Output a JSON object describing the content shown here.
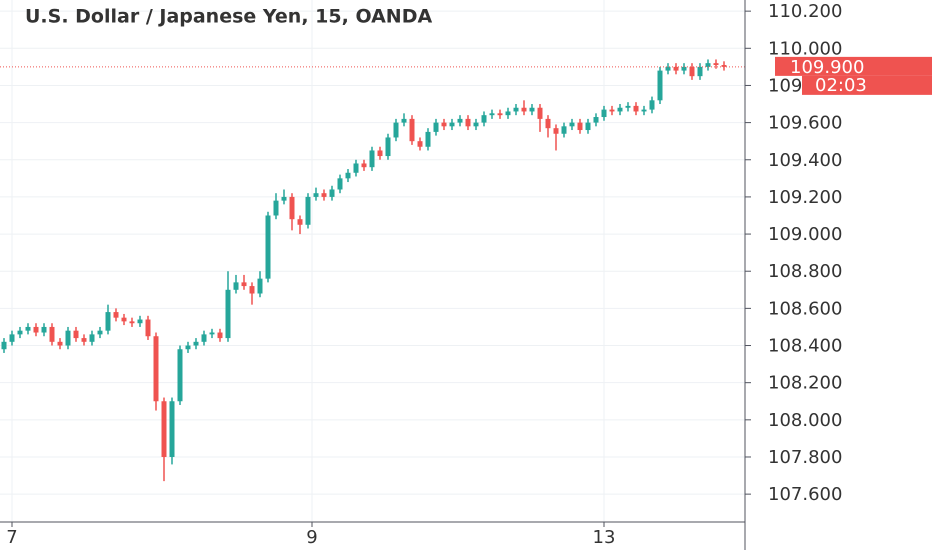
{
  "chart_data": {
    "type": "candlestick",
    "title": "U.S. Dollar / Japanese Yen, 15, OANDA",
    "open": [
      108.38,
      108.42,
      108.46,
      108.48,
      108.5,
      108.47,
      108.5,
      108.42,
      108.4,
      108.48,
      108.44,
      108.42,
      108.46,
      108.48,
      108.58,
      108.55,
      108.53,
      108.52,
      108.54,
      108.45,
      108.1,
      107.8,
      108.1,
      108.38,
      108.4,
      108.42,
      108.46,
      108.47,
      108.44,
      108.7,
      108.74,
      108.72,
      108.68,
      108.76,
      109.1,
      109.18,
      109.2,
      109.08,
      109.05,
      109.2,
      109.22,
      109.2,
      109.24,
      109.3,
      109.33,
      109.38,
      109.36,
      109.45,
      109.42,
      109.52,
      109.6,
      109.62,
      109.5,
      109.47,
      109.55,
      109.6,
      109.58,
      109.6,
      109.62,
      109.58,
      109.6,
      109.64,
      109.65,
      109.64,
      109.66,
      109.68,
      109.66,
      109.68,
      109.62,
      109.57,
      109.54,
      109.58,
      109.6,
      109.56,
      109.6,
      109.63,
      109.67,
      109.66,
      109.68,
      109.69,
      109.66,
      109.67,
      109.72,
      109.88,
      109.9,
      109.88,
      109.9,
      109.85,
      109.9,
      109.92,
      109.91
    ],
    "high": [
      108.44,
      108.48,
      108.5,
      108.52,
      108.52,
      108.52,
      108.52,
      108.44,
      108.5,
      108.5,
      108.46,
      108.48,
      108.5,
      108.62,
      108.6,
      108.57,
      108.55,
      108.56,
      108.56,
      108.47,
      108.12,
      108.12,
      108.4,
      108.42,
      108.44,
      108.48,
      108.49,
      108.49,
      108.8,
      108.78,
      108.78,
      108.74,
      108.8,
      109.12,
      109.22,
      109.24,
      109.22,
      109.1,
      109.22,
      109.25,
      109.24,
      109.26,
      109.32,
      109.35,
      109.4,
      109.4,
      109.47,
      109.47,
      109.54,
      109.62,
      109.65,
      109.64,
      109.52,
      109.57,
      109.62,
      109.62,
      109.62,
      109.64,
      109.64,
      109.62,
      109.66,
      109.67,
      109.67,
      109.68,
      109.7,
      109.72,
      109.7,
      109.7,
      109.64,
      109.59,
      109.6,
      109.62,
      109.62,
      109.62,
      109.65,
      109.69,
      109.69,
      109.7,
      109.71,
      109.71,
      109.69,
      109.74,
      109.9,
      109.92,
      109.92,
      109.92,
      109.92,
      109.92,
      109.94,
      109.94,
      109.93
    ],
    "low": [
      108.36,
      108.4,
      108.44,
      108.46,
      108.45,
      108.45,
      108.4,
      108.38,
      108.38,
      108.42,
      108.4,
      108.4,
      108.44,
      108.46,
      108.53,
      108.51,
      108.5,
      108.5,
      108.43,
      108.05,
      107.67,
      107.76,
      108.08,
      108.36,
      108.38,
      108.4,
      108.44,
      108.42,
      108.42,
      108.68,
      108.7,
      108.62,
      108.66,
      108.74,
      109.08,
      109.16,
      109.02,
      109.0,
      109.03,
      109.18,
      109.18,
      109.18,
      109.22,
      109.28,
      109.31,
      109.34,
      109.34,
      109.4,
      109.4,
      109.5,
      109.58,
      109.48,
      109.45,
      109.45,
      109.53,
      109.56,
      109.56,
      109.58,
      109.56,
      109.56,
      109.58,
      109.62,
      109.62,
      109.62,
      109.64,
      109.64,
      109.64,
      109.55,
      109.52,
      109.45,
      109.52,
      109.56,
      109.54,
      109.54,
      109.58,
      109.61,
      109.64,
      109.64,
      109.66,
      109.64,
      109.64,
      109.65,
      109.7,
      109.86,
      109.86,
      109.86,
      109.83,
      109.83,
      109.88,
      109.89,
      109.88
    ],
    "close": [
      108.42,
      108.46,
      108.48,
      108.5,
      108.47,
      108.5,
      108.42,
      108.4,
      108.48,
      108.44,
      108.42,
      108.46,
      108.48,
      108.58,
      108.55,
      108.53,
      108.52,
      108.54,
      108.45,
      108.1,
      107.8,
      108.1,
      108.38,
      108.4,
      108.42,
      108.46,
      108.47,
      108.44,
      108.7,
      108.74,
      108.72,
      108.68,
      108.76,
      109.1,
      109.18,
      109.2,
      109.08,
      109.05,
      109.2,
      109.22,
      109.2,
      109.24,
      109.3,
      109.33,
      109.38,
      109.36,
      109.45,
      109.42,
      109.52,
      109.6,
      109.62,
      109.5,
      109.47,
      109.55,
      109.6,
      109.58,
      109.6,
      109.62,
      109.58,
      109.6,
      109.64,
      109.65,
      109.64,
      109.66,
      109.68,
      109.66,
      109.68,
      109.62,
      109.57,
      109.54,
      109.58,
      109.6,
      109.56,
      109.6,
      109.63,
      109.67,
      109.66,
      109.68,
      109.69,
      109.66,
      109.67,
      109.72,
      109.88,
      109.9,
      109.88,
      109.9,
      109.85,
      109.9,
      109.92,
      109.91,
      109.9
    ],
    "up_color": "#26a69a",
    "down_color": "#ef5350",
    "ylim": [
      107.45,
      110.26
    ],
    "yticks": [
      {
        "value": 107.6,
        "label": "107.600"
      },
      {
        "value": 107.8,
        "label": "107.800"
      },
      {
        "value": 108.0,
        "label": "108.000"
      },
      {
        "value": 108.2,
        "label": "108.200"
      },
      {
        "value": 108.4,
        "label": "108.400"
      },
      {
        "value": 108.6,
        "label": "108.600"
      },
      {
        "value": 108.8,
        "label": "108.800"
      },
      {
        "value": 109.0,
        "label": "109.000"
      },
      {
        "value": 109.2,
        "label": "109.200"
      },
      {
        "value": 109.4,
        "label": "109.400"
      },
      {
        "value": 109.6,
        "label": "109.600"
      },
      {
        "value": 109.8,
        "label": "109.800"
      },
      {
        "value": 110.0,
        "label": "110.000"
      },
      {
        "value": 110.2,
        "label": "110.200"
      }
    ],
    "xticks": [
      {
        "value": 1,
        "label": "7"
      },
      {
        "value": 38.5,
        "label": "9"
      },
      {
        "value": 75,
        "label": "13"
      }
    ],
    "last_price": {
      "value": 109.9,
      "label": "109.900"
    },
    "countdown": "02:03",
    "grid": true
  }
}
